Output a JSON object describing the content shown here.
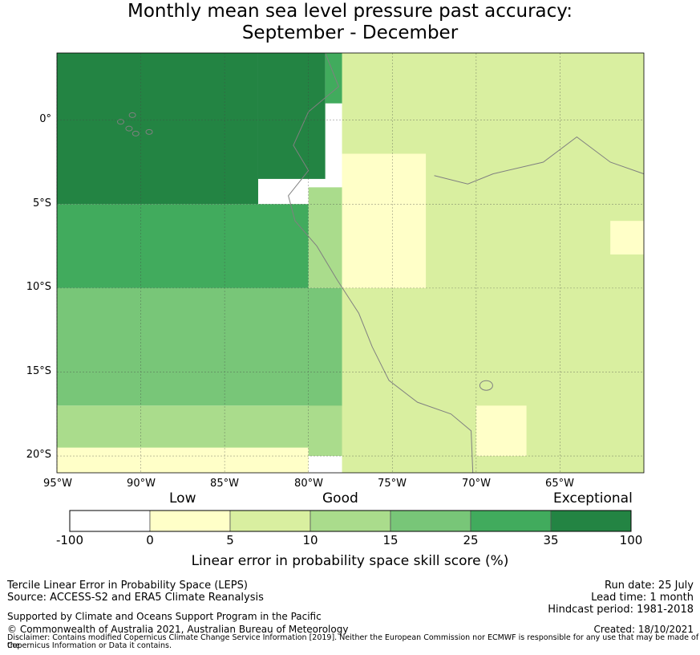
{
  "title_line1": "Monthly mean sea level pressure past accuracy:",
  "title_line2": "September - December",
  "lat_labels": [
    "0°",
    "5°S",
    "10°S",
    "15°S",
    "20°S"
  ],
  "lon_labels": [
    "95°W",
    "90°W",
    "85°W",
    "80°W",
    "75°W",
    "70°W",
    "65°W"
  ],
  "categories": {
    "low": "Low",
    "good": "Good",
    "exceptional": "Exceptional"
  },
  "colorbar": {
    "ticks": [
      "-100",
      "0",
      "5",
      "10",
      "15",
      "25",
      "35",
      "100"
    ],
    "colors": [
      "#ffffff",
      "#ffffc8",
      "#d9efa0",
      "#aadc8c",
      "#78c678",
      "#41ab5d",
      "#238443"
    ],
    "title": "Linear error in probability space skill score (%)"
  },
  "footer": {
    "left1": "Tercile Linear Error in Probability Space (LEPS)",
    "left2": "Source: ACCESS-S2 and ERA5 Climate Reanalysis",
    "support": "Supported by Climate and Oceans Support Program in the Pacific",
    "copyright": "© Commonwealth of Australia 2021, Australian Bureau of Meteorology",
    "run_date": "Run date: 25 July",
    "lead_time": "Lead time: 1 month",
    "hindcast": "Hindcast period: 1981-2018",
    "created": "Created: 18/10/2021",
    "disclaimer1": "Disclaimer: Contains modified Copernicus Climate Change Service Information [2019]. Neither the European Commission nor ECMWF is responsible for any use that may be made of the",
    "disclaimer2": "Copernicus Information or Data it contains."
  },
  "map_data": {
    "lon_range": [
      -95,
      -60
    ],
    "lat_range": [
      -21,
      4
    ],
    "grid": "on",
    "regions": [
      {
        "category": 6,
        "lon": [
          -95,
          -83
        ],
        "lat": [
          -5,
          4
        ]
      },
      {
        "category": 6,
        "lon": [
          -83,
          -79
        ],
        "lat": [
          -3.5,
          4
        ]
      },
      {
        "category": 5,
        "lon": [
          -95,
          -80
        ],
        "lat": [
          -10,
          -5
        ]
      },
      {
        "category": 5,
        "lon": [
          -90,
          -81
        ],
        "lat": [
          -13,
          -10
        ]
      },
      {
        "category": 5,
        "lon": [
          -79,
          -75
        ],
        "lat": [
          1,
          4
        ]
      },
      {
        "category": 4,
        "lon": [
          -95,
          -75
        ],
        "lat": [
          -17,
          -10
        ]
      },
      {
        "category": 4,
        "lon": [
          -80,
          -73
        ],
        "lat": [
          -18,
          -12
        ]
      },
      {
        "category": 3,
        "lon": [
          -95,
          -70
        ],
        "lat": [
          -20,
          -17
        ]
      },
      {
        "category": 3,
        "lon": [
          -80,
          -78
        ],
        "lat": [
          -10,
          -4
        ]
      },
      {
        "category": 2,
        "lon": [
          -78,
          -60
        ],
        "lat": [
          -21,
          4
        ]
      },
      {
        "category": 1,
        "lon": [
          -78,
          -73
        ],
        "lat": [
          -10,
          -2
        ]
      },
      {
        "category": 1,
        "lon": [
          -95,
          -80
        ],
        "lat": [
          -21,
          -19.5
        ]
      },
      {
        "category": 1,
        "lon": [
          -62,
          -60
        ],
        "lat": [
          -8,
          -6
        ]
      },
      {
        "category": 1,
        "lon": [
          -70,
          -67
        ],
        "lat": [
          -20,
          -17
        ]
      }
    ]
  }
}
